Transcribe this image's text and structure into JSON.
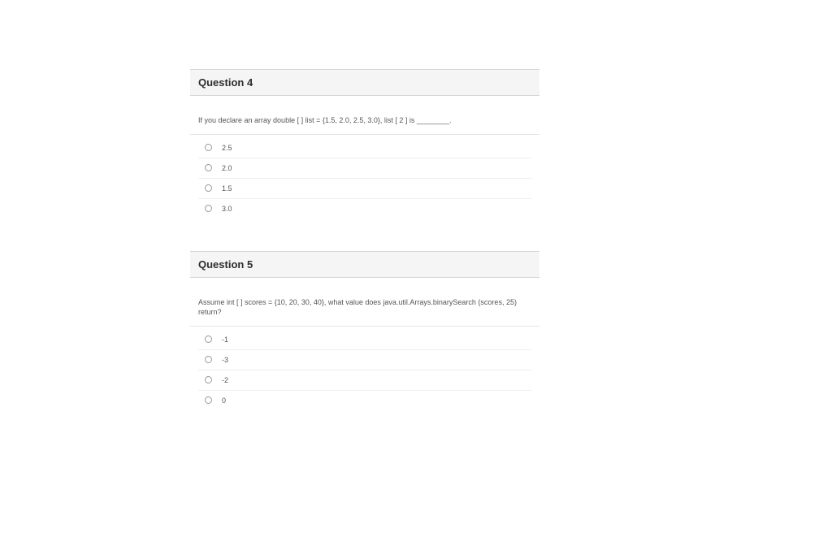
{
  "questions": [
    {
      "title": "Question 4",
      "prompt": "If you declare an array double [ ] list = {1.5, 2.0, 2.5, 3.0}, list [ 2 ] is ________.",
      "options": [
        "2.5",
        "2.0",
        "1.5",
        "3.0"
      ]
    },
    {
      "title": "Question 5",
      "prompt": "Assume int [ ] scores = {10, 20, 30, 40}, what value does java.util.Arrays.binarySearch (scores, 25) return?",
      "options": [
        "-1",
        "-3",
        "-2",
        "0"
      ]
    }
  ],
  "colors": {
    "header_bg": "#f5f5f5",
    "border": "#d6d6d6",
    "option_border": "#eeeeee",
    "text_dark": "#2d2d2d",
    "text_body": "#555555"
  }
}
